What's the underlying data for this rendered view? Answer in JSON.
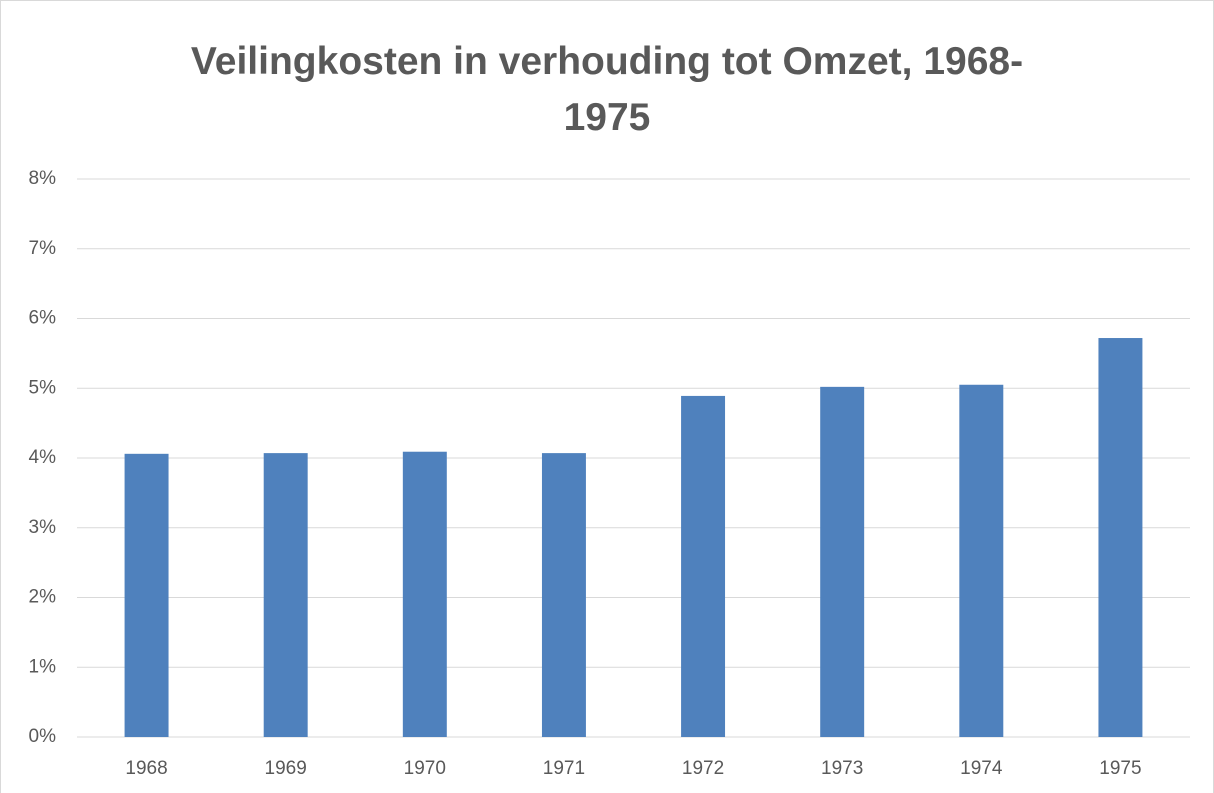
{
  "chart_data": {
    "type": "bar",
    "title": "Veilingkosten in verhouding tot Omzet, 1968-1975",
    "categories": [
      "1968",
      "1969",
      "1970",
      "1971",
      "1972",
      "1973",
      "1974",
      "1975"
    ],
    "values": [
      4.06,
      4.07,
      4.09,
      4.07,
      4.89,
      5.02,
      5.05,
      5.72
    ],
    "color": "#4f81bd",
    "ylim": [
      0,
      8
    ],
    "yticks": [
      {
        "value": 0,
        "label": "0%"
      },
      {
        "value": 1,
        "label": "1%"
      },
      {
        "value": 2,
        "label": "2%"
      },
      {
        "value": 3,
        "label": "3%"
      },
      {
        "value": 4,
        "label": "4%"
      },
      {
        "value": 5,
        "label": "5%"
      },
      {
        "value": 6,
        "label": "6%"
      },
      {
        "value": 7,
        "label": "7%"
      },
      {
        "value": 8,
        "label": "8%"
      }
    ],
    "grid": true
  }
}
